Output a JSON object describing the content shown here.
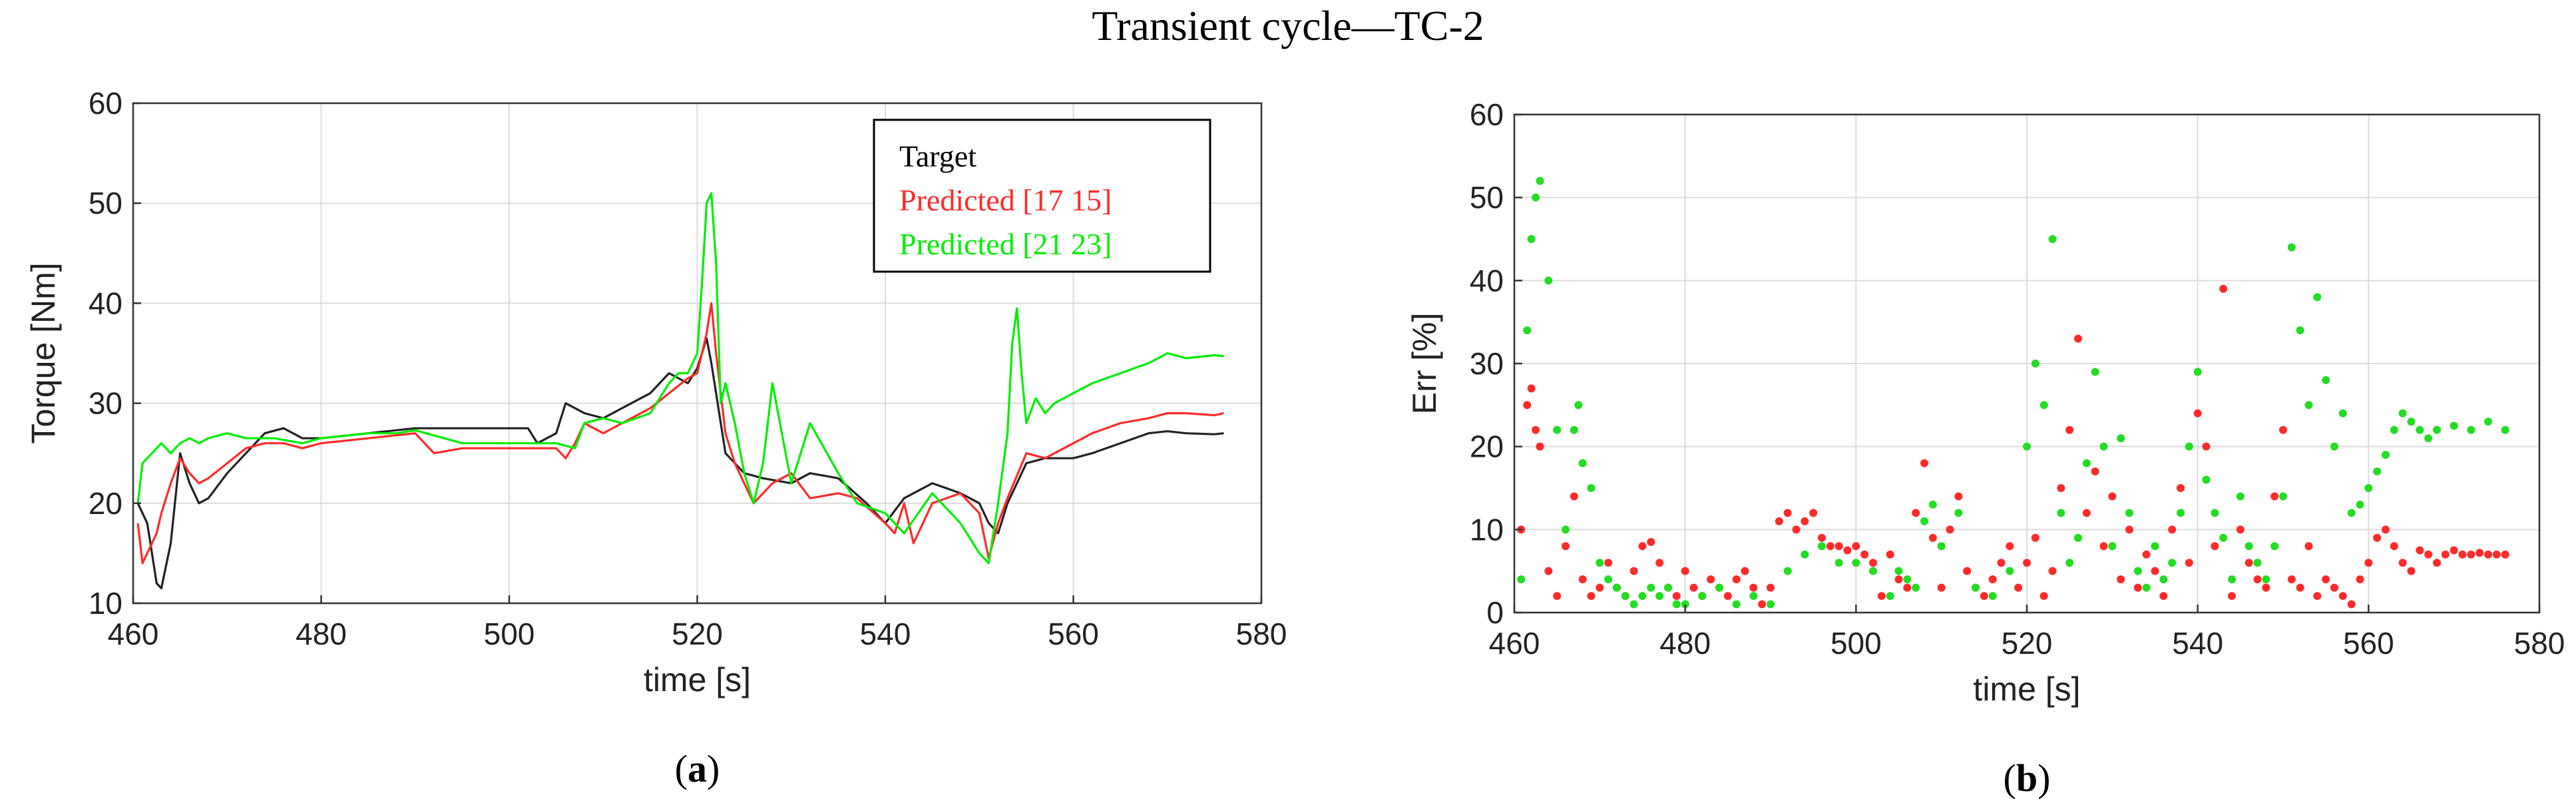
{
  "figure_title": "Transient cycle—TC-2",
  "chart_data": [
    {
      "type": "line",
      "panel_label": "(a)",
      "xlabel": "time [s]",
      "ylabel": "Torque [Nm]",
      "xlim": [
        460,
        580
      ],
      "ylim": [
        10,
        60
      ],
      "xticks": [
        460,
        480,
        500,
        520,
        540,
        560,
        580
      ],
      "yticks": [
        10,
        20,
        30,
        40,
        50,
        60
      ],
      "grid": true,
      "legend_position": "top-right",
      "series": [
        {
          "name": "Target",
          "color": "#222222",
          "x": [
            460.5,
            461.5,
            462,
            462.5,
            463,
            464,
            465,
            466,
            467,
            468,
            470,
            472,
            474,
            476,
            478,
            480,
            485,
            490,
            495,
            500,
            502,
            503,
            505,
            506,
            508,
            510,
            512,
            515,
            517,
            518,
            519,
            520,
            521,
            521.5,
            522,
            523,
            525,
            527,
            530,
            532,
            535,
            538,
            540,
            542,
            545,
            548,
            550,
            551,
            552,
            553,
            555,
            557,
            560,
            562,
            565,
            568,
            570,
            572,
            575,
            576
          ],
          "y": [
            20,
            18,
            15,
            12,
            11.5,
            16,
            25,
            22,
            20,
            20.5,
            23,
            25,
            27,
            27.5,
            26.5,
            26.5,
            27,
            27.5,
            27.5,
            27.5,
            27.5,
            26,
            27,
            30,
            29,
            28.5,
            29.5,
            31,
            33,
            32.5,
            32,
            33.5,
            36.5,
            34,
            31,
            25,
            23,
            22.5,
            22,
            23,
            22.5,
            20,
            18,
            20.5,
            22,
            21,
            20,
            18,
            17,
            20,
            24,
            24.5,
            24.5,
            25,
            26,
            27,
            27.2,
            27,
            26.9,
            27
          ]
        },
        {
          "name": "Predicted [17 15]",
          "color": "#ff2a2a",
          "x": [
            460.5,
            461,
            462,
            462.5,
            463,
            464,
            465,
            466,
            467,
            468,
            470,
            472,
            474,
            476,
            478,
            480,
            485,
            490,
            492,
            495,
            498,
            500,
            503,
            505,
            506,
            507,
            508,
            510,
            512,
            515,
            517,
            519,
            520,
            521,
            521.5,
            522,
            523,
            524,
            525,
            526,
            528,
            530,
            532,
            535,
            537,
            540,
            541,
            542,
            543,
            545,
            548,
            550,
            551,
            552,
            553,
            555,
            557,
            560,
            562,
            565,
            568,
            570,
            572,
            575,
            576
          ],
          "y": [
            18,
            14,
            16,
            17,
            19,
            22,
            24.5,
            23,
            22,
            22.5,
            24,
            25.5,
            26,
            26,
            25.5,
            26,
            26.5,
            27,
            25,
            25.5,
            25.5,
            25.5,
            25.5,
            25.5,
            24.5,
            26,
            28,
            27,
            28,
            29.5,
            31,
            32.5,
            33,
            37,
            40,
            35,
            27,
            24,
            22,
            20,
            22,
            23,
            20.5,
            21,
            20.5,
            18,
            17,
            20,
            16,
            20,
            21,
            19,
            14.5,
            18,
            20.5,
            25,
            24.5,
            26,
            27,
            28,
            28.5,
            29,
            29,
            28.8,
            29
          ]
        },
        {
          "name": "Predicted [21 23]",
          "color": "#00ee00",
          "x": [
            460.5,
            461,
            462,
            463,
            464,
            465,
            466,
            467,
            468,
            470,
            472,
            475,
            478,
            480,
            485,
            488,
            490,
            495,
            500,
            505,
            507,
            508,
            510,
            512,
            515,
            517,
            518,
            519,
            520,
            520.5,
            521,
            521.5,
            522,
            522.5,
            523,
            524,
            525,
            526,
            527,
            528,
            530,
            532,
            535,
            537,
            540,
            542,
            545,
            548,
            550,
            551,
            552,
            553,
            553.5,
            554,
            554.5,
            555,
            556,
            557,
            558,
            560,
            562,
            565,
            568,
            570,
            572,
            575,
            576
          ],
          "y": [
            20,
            24,
            25,
            26,
            25,
            26,
            26.5,
            26,
            26.5,
            27,
            26.5,
            26.5,
            26,
            26.5,
            27,
            27,
            27.3,
            26,
            26,
            26,
            25.5,
            28,
            28.5,
            28,
            29,
            32,
            33,
            33,
            35,
            42,
            50,
            51,
            44,
            30,
            32,
            28,
            23,
            20,
            24,
            32,
            22,
            28,
            23,
            20,
            19,
            17,
            21,
            18,
            15,
            14,
            20,
            27,
            36,
            39.5,
            33,
            28,
            30.5,
            29,
            30,
            31,
            32,
            33,
            34,
            35,
            34.5,
            34.8,
            34.7
          ]
        }
      ]
    },
    {
      "type": "scatter",
      "panel_label": "(b)",
      "xlabel": "time [s]",
      "ylabel": "Err [%]",
      "xlim": [
        460,
        580
      ],
      "ylim": [
        0,
        60
      ],
      "xticks": [
        460,
        480,
        500,
        520,
        540,
        560,
        580
      ],
      "yticks": [
        0,
        10,
        20,
        30,
        40,
        50,
        60
      ],
      "grid": true,
      "series": [
        {
          "color": "#ff2a2a",
          "x": [
            460.8,
            461.5,
            462,
            462.5,
            463,
            464,
            465,
            466,
            467,
            468,
            469,
            470,
            471,
            472,
            473,
            474,
            475,
            476,
            477,
            478,
            479,
            480,
            481,
            482,
            483,
            484,
            485,
            486,
            487,
            488,
            489,
            490,
            491,
            492,
            493,
            494,
            495,
            496,
            497,
            498,
            499,
            500,
            501,
            502,
            503,
            504,
            505,
            506,
            507,
            508,
            509,
            510,
            511,
            512,
            513,
            514,
            515,
            516,
            517,
            518,
            519,
            520,
            521,
            522,
            523,
            524,
            525,
            526,
            527,
            528,
            529,
            530,
            531,
            532,
            533,
            534,
            535,
            536,
            537,
            538,
            539,
            540,
            541,
            542,
            543,
            544,
            545,
            546,
            547,
            548,
            549,
            550,
            551,
            552,
            553,
            554,
            555,
            556,
            557,
            558,
            559,
            560,
            561,
            562,
            563,
            564,
            565,
            566,
            567,
            568,
            569,
            570,
            571,
            572,
            573,
            574,
            575,
            576
          ],
          "y": [
            10,
            25,
            27,
            22,
            20,
            5,
            2,
            8,
            14,
            4,
            2,
            3,
            6,
            3,
            2,
            5,
            8,
            8.5,
            6,
            3,
            2,
            5,
            3,
            2,
            4,
            3,
            2,
            4,
            5,
            3,
            1,
            3,
            11,
            12,
            10,
            11,
            12,
            9,
            8,
            8,
            7.5,
            8,
            7,
            6,
            2,
            7,
            4,
            3,
            12,
            18,
            9,
            3,
            10,
            14,
            5,
            3,
            2,
            4,
            6,
            8,
            3,
            6,
            9,
            2,
            5,
            15,
            22,
            33,
            12,
            17,
            8,
            14,
            4,
            10,
            3,
            7,
            5,
            2,
            10,
            15,
            6,
            24,
            20,
            8,
            39,
            2,
            10,
            6,
            4,
            3,
            14,
            22,
            4,
            3,
            8,
            2,
            4,
            3,
            2,
            1,
            4,
            6,
            9,
            10,
            8,
            6,
            5,
            7.5,
            7,
            6,
            7,
            7.5,
            7,
            7,
            7.2,
            7,
            7,
            7
          ]
        },
        {
          "color": "#22dd22",
          "x": [
            460.8,
            461.5,
            462,
            462.5,
            463,
            464,
            465,
            466,
            467,
            467.5,
            468,
            469,
            470,
            471,
            472,
            473,
            474,
            475,
            476,
            477,
            478,
            479,
            480,
            482,
            484,
            486,
            488,
            490,
            492,
            494,
            496,
            498,
            500,
            502,
            504,
            505,
            506,
            507,
            508,
            509,
            510,
            512,
            514,
            516,
            518,
            520,
            521,
            522,
            523,
            524,
            525,
            526,
            527,
            528,
            529,
            530,
            531,
            532,
            533,
            534,
            535,
            536,
            537,
            538,
            539,
            540,
            541,
            542,
            543,
            544,
            545,
            546,
            547,
            548,
            549,
            550,
            551,
            552,
            553,
            554,
            555,
            556,
            557,
            558,
            559,
            560,
            561,
            562,
            563,
            564,
            565,
            566,
            567,
            568,
            570,
            572,
            574,
            576
          ],
          "y": [
            4,
            34,
            45,
            50,
            52,
            40,
            22,
            10,
            22,
            25,
            18,
            15,
            6,
            4,
            3,
            2,
            1,
            2,
            3,
            2,
            3,
            1,
            1,
            2,
            3,
            1,
            2,
            1,
            5,
            7,
            8,
            6,
            6,
            5,
            2,
            5,
            4,
            3,
            11,
            13,
            8,
            12,
            3,
            2,
            5,
            20,
            30,
            25,
            45,
            12,
            6,
            9,
            18,
            29,
            20,
            8,
            21,
            12,
            5,
            3,
            8,
            4,
            6,
            12,
            20,
            29,
            16,
            12,
            9,
            4,
            14,
            8,
            6,
            4,
            8,
            14,
            44,
            34,
            25,
            38,
            28,
            20,
            24,
            12,
            13,
            15,
            17,
            19,
            22,
            24,
            23,
            22,
            21,
            22,
            22.5,
            22,
            23,
            22
          ]
        }
      ]
    }
  ]
}
